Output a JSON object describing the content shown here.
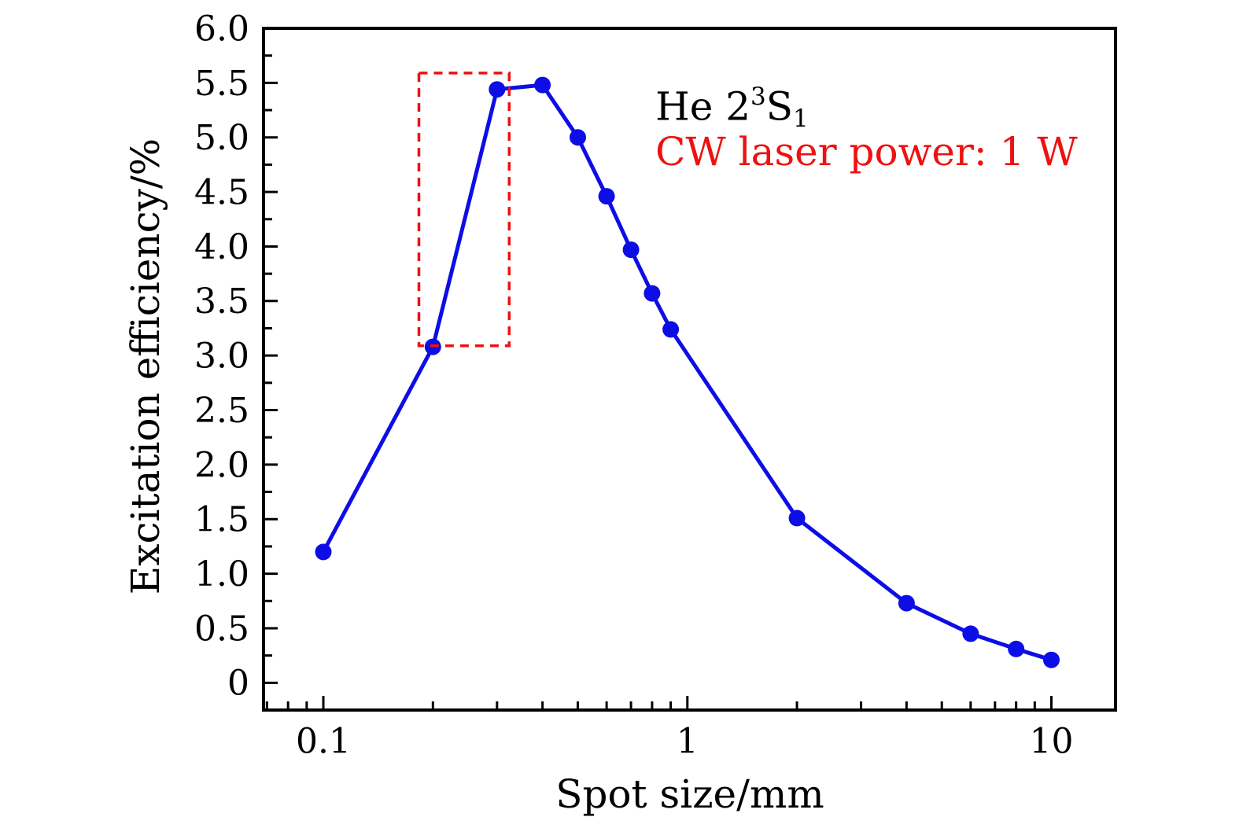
{
  "chart_data": {
    "type": "line",
    "title": "",
    "xlabel": "Spot size/mm",
    "ylabel": "Excitation efficiency/%",
    "x_scale": "log",
    "y_scale": "linear",
    "xlim": [
      0.0685,
      15
    ],
    "ylim": [
      -0.25,
      6.0
    ],
    "grid": false,
    "legend": "none",
    "x_axis": {
      "major_ticks": [
        0.1,
        1,
        10
      ],
      "major_labels": [
        "0.1",
        "1",
        "10"
      ],
      "minor_ticks": [
        0.07,
        0.08,
        0.09,
        0.2,
        0.3,
        0.4,
        0.5,
        0.6,
        0.7,
        0.8,
        0.9,
        2,
        3,
        4,
        5,
        6,
        7,
        8,
        9
      ]
    },
    "y_axis": {
      "major_ticks": [
        0,
        0.5,
        1.0,
        1.5,
        2.0,
        2.5,
        3.0,
        3.5,
        4.0,
        4.5,
        5.0,
        5.5,
        6.0
      ],
      "major_labels": [
        "0",
        "0.5",
        "1.0",
        "1.5",
        "2.0",
        "2.5",
        "3.0",
        "3.5",
        "4.0",
        "4.5",
        "5.0",
        "5.5",
        "6.0"
      ],
      "minor_ticks": [
        0.25,
        0.75,
        1.25,
        1.75,
        2.25,
        2.75,
        3.25,
        3.75,
        4.25,
        4.75,
        5.25,
        5.75
      ]
    },
    "series": [
      {
        "name": "He 2(3)S1 excitation efficiency vs spot size",
        "color": "#0d0de6",
        "marker": "circle",
        "marker_size": 10.5,
        "line_width": 5,
        "points": [
          [
            0.1,
            1.2
          ],
          [
            0.2,
            3.08
          ],
          [
            0.3,
            5.44
          ],
          [
            0.4,
            5.48
          ],
          [
            0.5,
            5.0
          ],
          [
            0.6,
            4.46
          ],
          [
            0.7,
            3.97
          ],
          [
            0.8,
            3.57
          ],
          [
            0.9,
            3.24
          ],
          [
            2,
            1.51
          ],
          [
            4,
            0.73
          ],
          [
            6,
            0.45
          ],
          [
            8,
            0.31
          ],
          [
            10,
            0.21
          ]
        ]
      }
    ],
    "highlight_rect": {
      "x0": 0.183,
      "x1": 0.324,
      "y0": 3.09,
      "y1": 5.59,
      "color": "#ee1111",
      "line_style": "dashed"
    },
    "annotations": [
      {
        "name": "state-label",
        "color": "#000000",
        "x": 0.817,
        "y": 5.27,
        "parts": [
          {
            "text": "He 2",
            "script": "normal"
          },
          {
            "text": "3",
            "script": "sup"
          },
          {
            "text": "S",
            "script": "normal"
          },
          {
            "text": "1",
            "script": "sub"
          }
        ]
      },
      {
        "name": "laser-power-label",
        "color": "#ee1111",
        "x": 0.817,
        "y": 4.87,
        "text": "CW laser power: 1 W"
      }
    ]
  }
}
